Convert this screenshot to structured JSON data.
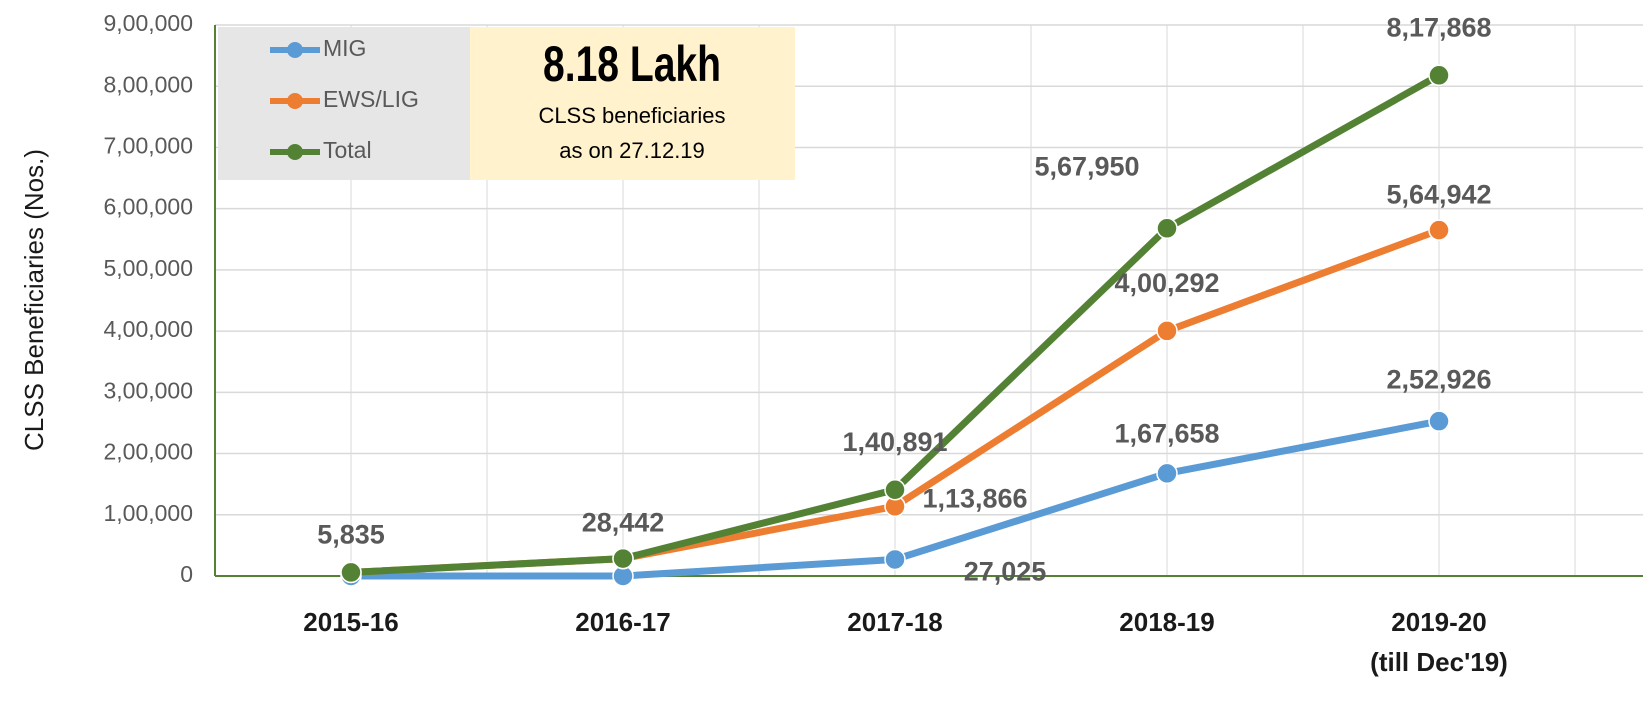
{
  "chart_data": {
    "type": "line",
    "y_label": "CLSS Beneficiaries (Nos.)",
    "categories": [
      "2015-16",
      "2016-17",
      "2017-18",
      "2018-19",
      "2019-20\n(till Dec'19)"
    ],
    "series": [
      {
        "name": "MIG",
        "color": "#5b9bd5",
        "values": [
          0,
          0,
          27025,
          167658,
          252926
        ],
        "value_labels": [
          null,
          null,
          "27,025",
          "1,67,658",
          "2,52,926"
        ]
      },
      {
        "name": "EWS/LIG",
        "color": "#ed7d31",
        "values": [
          5835,
          28442,
          113866,
          400292,
          564942
        ],
        "value_labels": [
          null,
          null,
          "1,13,866",
          "4,00,292",
          "5,64,942"
        ]
      },
      {
        "name": "Total",
        "color": "#548235",
        "values": [
          5835,
          28442,
          140891,
          567950,
          817868
        ],
        "value_labels": [
          "5,835",
          "28,442",
          "1,40,891",
          "5,67,950",
          "8,17,868"
        ]
      }
    ],
    "ylim": [
      0,
      900000
    ],
    "yticks": [
      0,
      {
        "value": 100000,
        "label": "1,00,000"
      },
      {
        "value": 200000,
        "label": "2,00,000"
      },
      {
        "value": 300000,
        "label": "3,00,000"
      },
      {
        "value": 400000,
        "label": "4,00,000"
      },
      {
        "value": 500000,
        "label": "5,00,000"
      },
      {
        "value": 600000,
        "label": "6,00,000"
      },
      {
        "value": 700000,
        "label": "7,00,000"
      },
      {
        "value": 800000,
        "label": "8,00,000"
      },
      {
        "value": 900000,
        "label": "9,00,000"
      }
    ],
    "grid": true,
    "legend": "top-left",
    "annotation": {
      "headline": "8.18 Lakh",
      "lines": [
        "CLSS beneficiaries",
        "as on 27.12.19"
      ]
    }
  }
}
